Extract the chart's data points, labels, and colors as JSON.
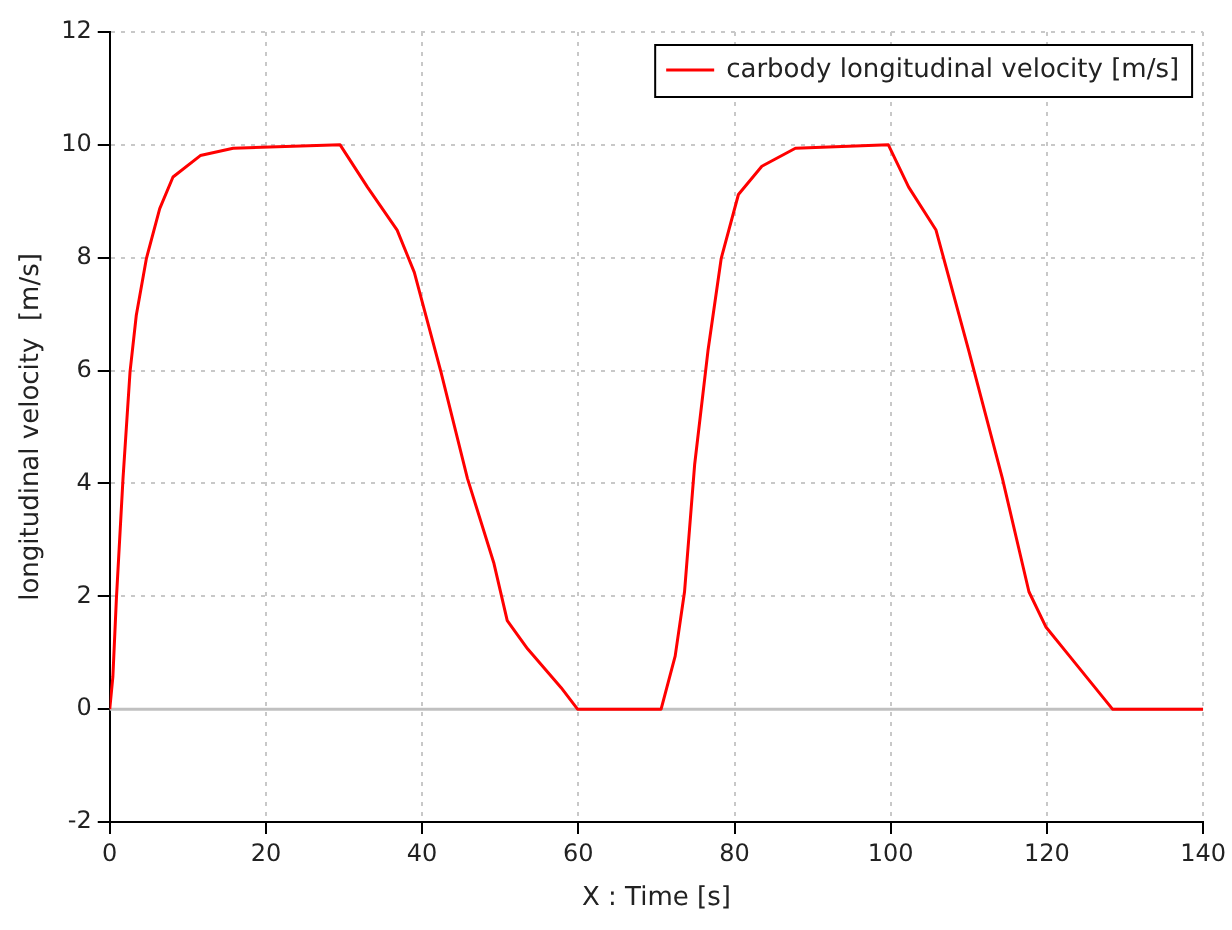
{
  "chart_data": {
    "type": "line",
    "xlabel": "X : Time [s]",
    "ylabel": "longitudinal velocity  [m/s]",
    "xlim": [
      0,
      140
    ],
    "xticks": [
      0,
      20,
      40,
      60,
      80,
      100,
      120,
      140
    ],
    "ylim": [
      -2,
      12
    ],
    "yticks": [
      -2,
      0,
      2,
      4,
      6,
      8,
      10,
      12
    ],
    "grid": true,
    "legend": "top right",
    "ref_lines": [
      {
        "axis": "y",
        "value": 0,
        "color": "#c0c0c0",
        "line_style": "solid"
      }
    ],
    "marker": "none",
    "line_style": "solid",
    "series": [
      {
        "name": "carbody longitudinal velocity [m/s]",
        "color": "#ff0000",
        "x": [
          0,
          0.4,
          0.85,
          1.7,
          2.6,
          3.4,
          4.7,
          6.4,
          8.1,
          11.6,
          15.8,
          29.5,
          33,
          36.8,
          39,
          42.4,
          45.8,
          49.2,
          50.9,
          53.5,
          57.8,
          59.9,
          70.6,
          72.4,
          73.6,
          74.9,
          76.6,
          78.3,
          80.5,
          83.5,
          87.8,
          99.7,
          102.3,
          105.8,
          110,
          114.3,
          117.7,
          119.9,
          122.9,
          128.4,
          140
        ],
        "values": [
          0,
          0.57,
          1.95,
          4.09,
          5.98,
          6.98,
          7.99,
          8.87,
          9.43,
          9.81,
          9.94,
          10,
          9.25,
          8.49,
          7.74,
          5.98,
          4.09,
          2.58,
          1.57,
          1.07,
          0.38,
          0,
          0,
          0.94,
          2.08,
          4.34,
          6.35,
          7.99,
          9.12,
          9.62,
          9.94,
          10,
          9.25,
          8.49,
          6.35,
          4.09,
          2.08,
          1.45,
          0.94,
          0,
          0
        ]
      }
    ]
  }
}
